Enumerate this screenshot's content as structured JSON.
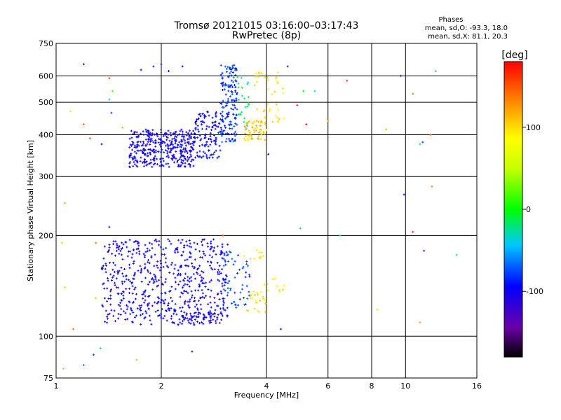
{
  "chart_data": {
    "type": "scatter",
    "title": "Tromsø 20121015 03:16:00–03:17:43",
    "subtitle": "RwPretec (8p)",
    "xlabel": "Frequency [MHz]",
    "ylabel": "Stationary phase Virtual Height [km]",
    "x_scale": "log",
    "y_scale": "log",
    "xlim": [
      1,
      16
    ],
    "ylim": [
      75,
      750
    ],
    "x_ticks": [
      1,
      2,
      4,
      6,
      8,
      10,
      16
    ],
    "y_ticks": [
      75,
      100,
      200,
      300,
      400,
      500,
      600,
      750
    ],
    "grid": true,
    "stats": {
      "heading": "Phases",
      "line1": "mean, sd,O: -93.3, 18.0",
      "line2": "mean, sd,X:  81.1, 20.3"
    },
    "colorbar": {
      "label": "[deg]",
      "range": [
        -180,
        180
      ],
      "ticks": [
        100,
        0,
        -100
      ],
      "colormap": "rainbow"
    },
    "clusters": [
      {
        "freq_range": [
          1.62,
          2.5
        ],
        "height_range": [
          320,
          415
        ],
        "phase": -100,
        "count": 380
      },
      {
        "freq_range": [
          2.5,
          2.95
        ],
        "height_range": [
          340,
          470
        ],
        "phase": -95,
        "count": 120
      },
      {
        "freq_range": [
          2.95,
          3.3
        ],
        "height_range": [
          380,
          650
        ],
        "phase": -80,
        "count": 160
      },
      {
        "freq_range": [
          3.3,
          3.6
        ],
        "height_range": [
          420,
          600
        ],
        "phase": -20,
        "count": 25
      },
      {
        "freq_range": [
          3.45,
          4.0
        ],
        "height_range": [
          385,
          440
        ],
        "phase": 105,
        "count": 60
      },
      {
        "freq_range": [
          3.7,
          4.5
        ],
        "height_range": [
          430,
          620
        ],
        "phase": 95,
        "count": 40
      },
      {
        "freq_range": [
          1.35,
          3.1
        ],
        "height_range": [
          108,
          195
        ],
        "phase": -100,
        "count": 620
      },
      {
        "freq_range": [
          2.3,
          3.0
        ],
        "height_range": [
          112,
          118
        ],
        "phase": -100,
        "count": 40
      },
      {
        "freq_range": [
          3.0,
          3.6
        ],
        "height_range": [
          120,
          180
        ],
        "phase": -75,
        "count": 55
      },
      {
        "freq_range": [
          3.5,
          4.0
        ],
        "height_range": [
          118,
          138
        ],
        "phase": 95,
        "count": 25
      },
      {
        "freq_range": [
          3.9,
          4.5
        ],
        "height_range": [
          135,
          150
        ],
        "phase": 90,
        "count": 12
      },
      {
        "freq_range": [
          3.4,
          4.0
        ],
        "height_range": [
          170,
          182
        ],
        "phase": 90,
        "count": 10
      }
    ],
    "scattered_points": [
      {
        "freq": 1.04,
        "height": 190,
        "phase": 110
      },
      {
        "freq": 1.06,
        "height": 250,
        "phase": 120
      },
      {
        "freq": 1.06,
        "height": 140,
        "phase": 100
      },
      {
        "freq": 1.1,
        "height": 470,
        "phase": 60
      },
      {
        "freq": 1.12,
        "height": 105,
        "phase": 140
      },
      {
        "freq": 1.05,
        "height": 80,
        "phase": 110
      },
      {
        "freq": 1.2,
        "height": 650,
        "phase": -100
      },
      {
        "freq": 1.2,
        "height": 82,
        "phase": -60
      },
      {
        "freq": 1.28,
        "height": 88,
        "phase": -80
      },
      {
        "freq": 1.3,
        "height": 130,
        "phase": 110
      },
      {
        "freq": 1.34,
        "height": 92,
        "phase": -40
      },
      {
        "freq": 1.42,
        "height": 590,
        "phase": 160
      },
      {
        "freq": 1.45,
        "height": 540,
        "phase": 20
      },
      {
        "freq": 1.44,
        "height": 465,
        "phase": -80
      },
      {
        "freq": 1.42,
        "height": 212,
        "phase": -110
      },
      {
        "freq": 1.35,
        "height": 375,
        "phase": -110
      },
      {
        "freq": 1.2,
        "height": 430,
        "phase": 140
      },
      {
        "freq": 1.25,
        "height": 390,
        "phase": 150
      },
      {
        "freq": 1.3,
        "height": 190,
        "phase": 140
      },
      {
        "freq": 1.55,
        "height": 420,
        "phase": 120
      },
      {
        "freq": 1.7,
        "height": 85,
        "phase": 120
      },
      {
        "freq": 1.75,
        "height": 625,
        "phase": -100
      },
      {
        "freq": 1.9,
        "height": 640,
        "phase": -100
      },
      {
        "freq": 2.0,
        "height": 650,
        "phase": -100
      },
      {
        "freq": 2.1,
        "height": 620,
        "phase": -100
      },
      {
        "freq": 2.3,
        "height": 640,
        "phase": -100
      },
      {
        "freq": 2.45,
        "height": 90,
        "phase": -100
      },
      {
        "freq": 3.0,
        "height": 200,
        "phase": 150
      },
      {
        "freq": 4.05,
        "height": 350,
        "phase": -100
      },
      {
        "freq": 4.4,
        "height": 105,
        "phase": -120
      },
      {
        "freq": 4.6,
        "height": 640,
        "phase": -150
      },
      {
        "freq": 4.9,
        "height": 490,
        "phase": 170
      },
      {
        "freq": 5.0,
        "height": 210,
        "phase": -20
      },
      {
        "freq": 5.1,
        "height": 540,
        "phase": 0
      },
      {
        "freq": 5.2,
        "height": 430,
        "phase": 170
      },
      {
        "freq": 5.5,
        "height": 540,
        "phase": -40
      },
      {
        "freq": 6.0,
        "height": 440,
        "phase": 120
      },
      {
        "freq": 6.5,
        "height": 200,
        "phase": -20
      },
      {
        "freq": 6.8,
        "height": 580,
        "phase": 160
      },
      {
        "freq": 8.3,
        "height": 120,
        "phase": 50
      },
      {
        "freq": 8.8,
        "height": 415,
        "phase": 120
      },
      {
        "freq": 9.7,
        "height": 600,
        "phase": -100
      },
      {
        "freq": 9.9,
        "height": 265,
        "phase": -100
      },
      {
        "freq": 10.5,
        "height": 205,
        "phase": 170
      },
      {
        "freq": 10.5,
        "height": 530,
        "phase": 140
      },
      {
        "freq": 11.0,
        "height": 375,
        "phase": -20
      },
      {
        "freq": 11.2,
        "height": 380,
        "phase": -80
      },
      {
        "freq": 11.0,
        "height": 110,
        "phase": 120
      },
      {
        "freq": 11.3,
        "height": 180,
        "phase": -140
      },
      {
        "freq": 11.8,
        "height": 400,
        "phase": 150
      },
      {
        "freq": 11.9,
        "height": 280,
        "phase": 130
      },
      {
        "freq": 12.2,
        "height": 620,
        "phase": -20
      },
      {
        "freq": 14.0,
        "height": 175,
        "phase": -20
      },
      {
        "freq": 1.42,
        "height": 510,
        "phase": -30
      }
    ]
  }
}
